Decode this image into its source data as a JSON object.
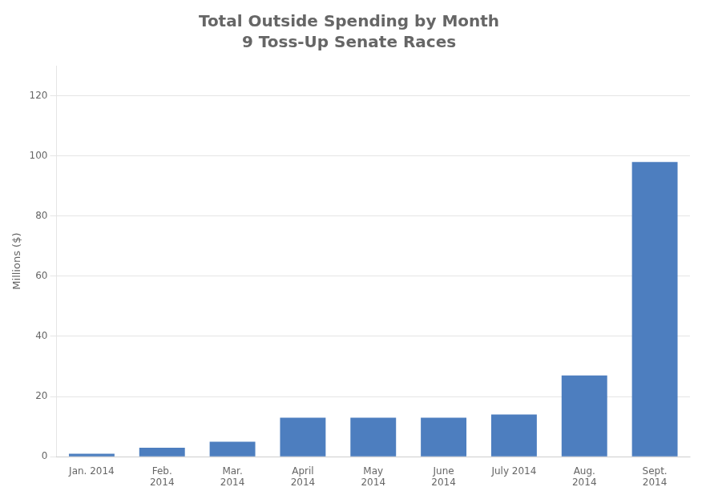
{
  "chart_data": {
    "type": "bar",
    "title": "Total Outside Spending by Month",
    "subtitle": "9 Toss-Up Senate Races",
    "categories": [
      "Jan. 2014",
      "Feb.\n2014",
      "Mar.\n2014",
      "April\n2014",
      "May\n2014",
      "June\n2014",
      "July 2014",
      "Aug.\n2014",
      "Sept.\n2014"
    ],
    "values": [
      1.0,
      3.0,
      5.0,
      13.0,
      13.0,
      13.0,
      14.0,
      27.0,
      98.0
    ],
    "color": "#4d7ebf",
    "ylabel": "Millions ($)",
    "ylim": [
      0,
      130
    ],
    "yticks": [
      0,
      20,
      40,
      60,
      80,
      100,
      120
    ],
    "grid": true
  }
}
